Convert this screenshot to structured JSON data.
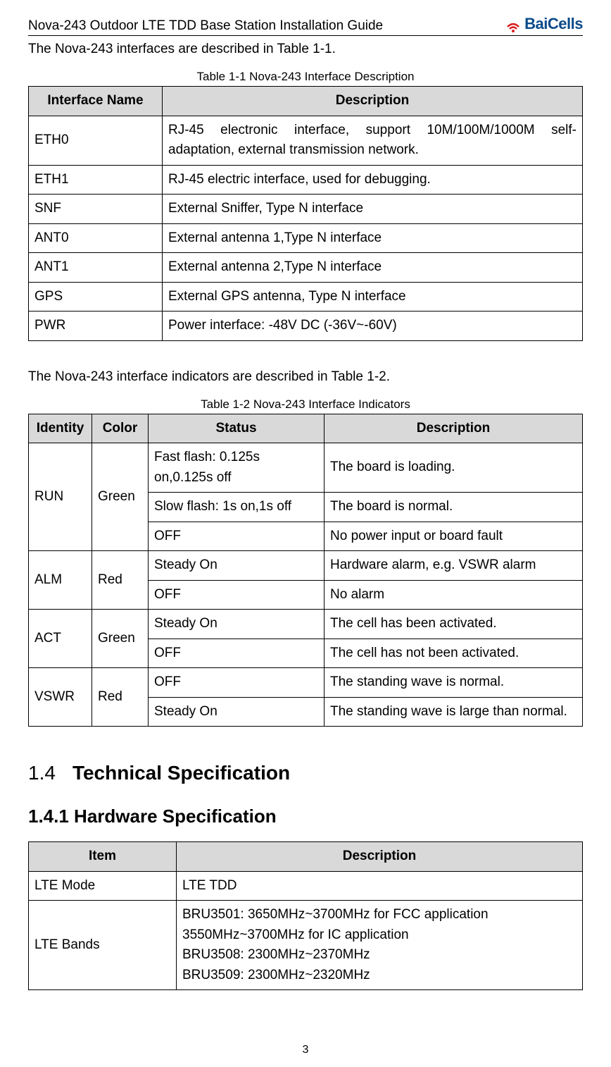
{
  "header": {
    "doc_title": "Nova-243 Outdoor LTE TDD Base Station Installation Guide",
    "logo_text": "BaiCells"
  },
  "intro1": "The Nova-243 interfaces are described in Table 1-1.",
  "table1": {
    "caption": "Table 1-1 Nova-243 Interface Description",
    "headers": [
      "Interface Name",
      "Description"
    ],
    "rows": [
      [
        "ETH0",
        "RJ-45 electronic interface, support 10M/100M/1000M self-adaptation, external transmission network."
      ],
      [
        "ETH1",
        "RJ-45 electric interface, used for debugging."
      ],
      [
        "SNF",
        "External Sniffer, Type N interface"
      ],
      [
        "ANT0",
        "External antenna 1,Type N interface"
      ],
      [
        "ANT1",
        "External antenna 2,Type N interface"
      ],
      [
        "GPS",
        "External GPS antenna, Type N interface"
      ],
      [
        "PWR",
        "Power interface: -48V DC (-36V~-60V)"
      ]
    ]
  },
  "intro2": "The Nova-243 interface indicators are described in Table 1-2.",
  "table2": {
    "caption": "Table 1-2 Nova-243 Interface Indicators",
    "headers": [
      "Identity",
      "Color",
      "Status",
      "Description"
    ],
    "groups": [
      {
        "identity": "RUN",
        "color": "Green",
        "rows": [
          [
            "Fast flash: 0.125s on,0.125s off",
            "The board is loading."
          ],
          [
            "Slow flash: 1s on,1s off",
            "The board is normal."
          ],
          [
            "OFF",
            "No power input or board fault"
          ]
        ]
      },
      {
        "identity": "ALM",
        "color": "Red",
        "rows": [
          [
            "Steady On",
            "Hardware alarm, e.g. VSWR alarm"
          ],
          [
            "OFF",
            "No alarm"
          ]
        ]
      },
      {
        "identity": "ACT",
        "color": "Green",
        "rows": [
          [
            "Steady On",
            "The cell has been activated."
          ],
          [
            "OFF",
            "The cell has not been activated."
          ]
        ]
      },
      {
        "identity": "VSWR",
        "color": "Red",
        "rows": [
          [
            "OFF",
            "The standing wave is normal."
          ],
          [
            "Steady On",
            "The standing wave is large than normal."
          ]
        ]
      }
    ]
  },
  "section": {
    "number": "1.4",
    "title": "Technical Specification"
  },
  "subsection": {
    "title": "1.4.1 Hardware Specification"
  },
  "table3": {
    "headers": [
      "Item",
      "Description"
    ],
    "rows": [
      [
        "LTE Mode",
        "LTE TDD"
      ],
      [
        "LTE Bands",
        "BRU3501: 3650MHz~3700MHz for FCC application\n                  3550MHz~3700MHz for IC application\nBRU3508: 2300MHz~2370MHz\nBRU3509: 2300MHz~2320MHz"
      ]
    ]
  },
  "page_number": "3",
  "colors": {
    "header_bg": "#d9d9d9",
    "logo_blue": "#0a4a8a",
    "logo_red": "#d92020"
  }
}
